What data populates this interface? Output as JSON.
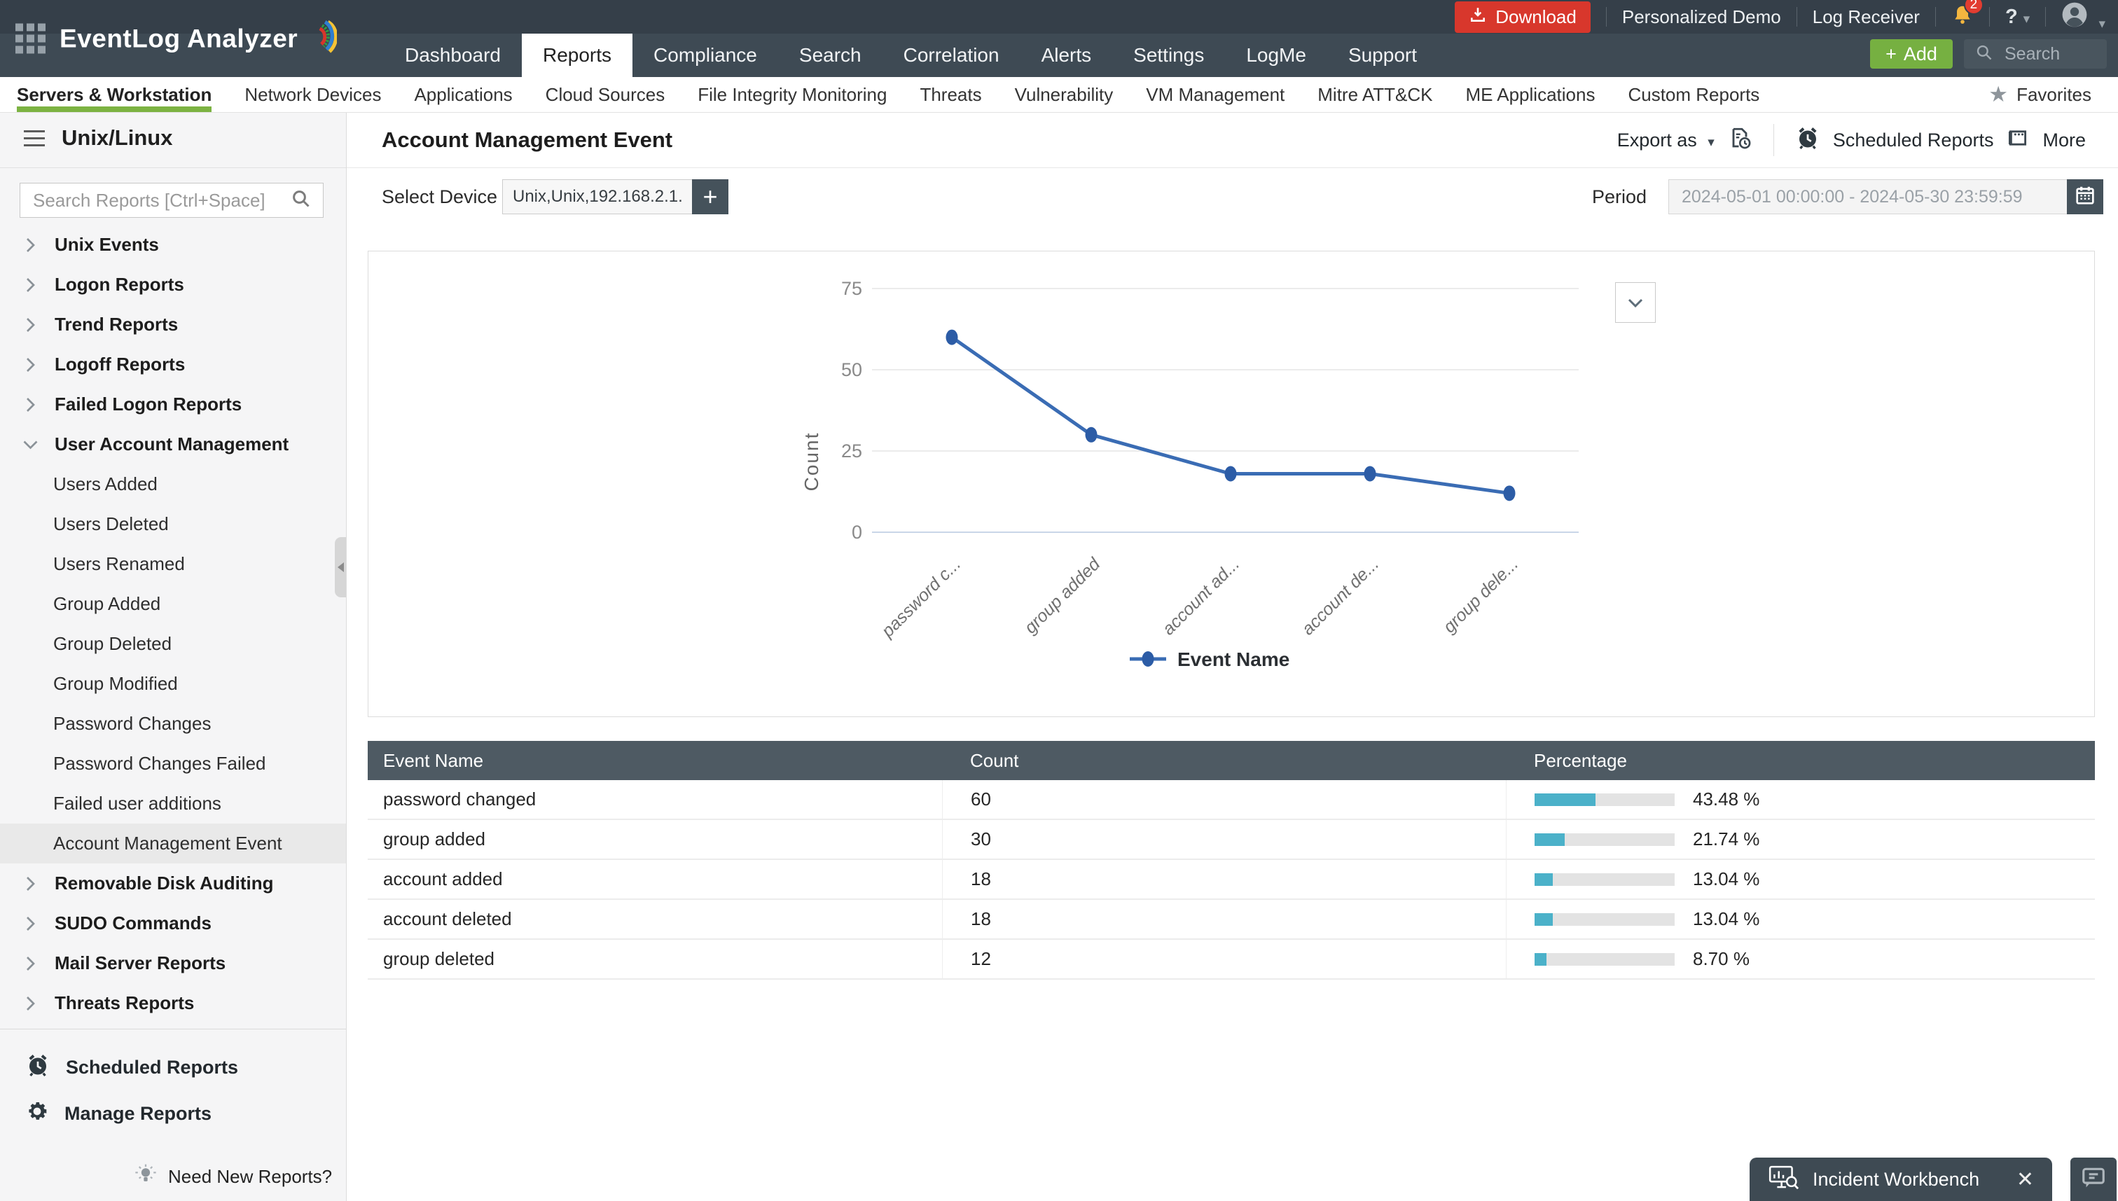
{
  "header": {
    "brand": "EventLog Analyzer",
    "tabs": [
      {
        "label": "Dashboard"
      },
      {
        "label": "Reports",
        "active": true
      },
      {
        "label": "Compliance"
      },
      {
        "label": "Search"
      },
      {
        "label": "Correlation"
      },
      {
        "label": "Alerts"
      },
      {
        "label": "Settings"
      },
      {
        "label": "LogMe"
      },
      {
        "label": "Support"
      }
    ],
    "utility": {
      "download": "Download",
      "personalized_demo": "Personalized Demo",
      "log_receiver": "Log Receiver",
      "notification_count": "2",
      "help": "?"
    },
    "add_label": "Add",
    "search_placeholder": "Search"
  },
  "subnav": {
    "items": [
      {
        "label": "Servers & Workstation",
        "active": true
      },
      {
        "label": "Network Devices"
      },
      {
        "label": "Applications"
      },
      {
        "label": "Cloud Sources"
      },
      {
        "label": "File Integrity Monitoring"
      },
      {
        "label": "Threats"
      },
      {
        "label": "Vulnerability"
      },
      {
        "label": "VM Management"
      },
      {
        "label": "Mitre ATT&CK"
      },
      {
        "label": "ME Applications"
      },
      {
        "label": "Custom Reports"
      }
    ],
    "favorites": "Favorites"
  },
  "sidebar": {
    "title": "Unix/Linux",
    "search_placeholder": "Search Reports [Ctrl+Space]",
    "items": [
      {
        "label": "Unix Events",
        "type": "group"
      },
      {
        "label": "Logon Reports",
        "type": "group"
      },
      {
        "label": "Trend Reports",
        "type": "group"
      },
      {
        "label": "Logoff Reports",
        "type": "group"
      },
      {
        "label": "Failed Logon Reports",
        "type": "group"
      },
      {
        "label": "User Account Management",
        "type": "group",
        "expanded": true
      },
      {
        "label": "Users Added",
        "type": "child"
      },
      {
        "label": "Users Deleted",
        "type": "child"
      },
      {
        "label": "Users Renamed",
        "type": "child"
      },
      {
        "label": "Group Added",
        "type": "child"
      },
      {
        "label": "Group Deleted",
        "type": "child"
      },
      {
        "label": "Group Modified",
        "type": "child"
      },
      {
        "label": "Password Changes",
        "type": "child"
      },
      {
        "label": "Password Changes Failed",
        "type": "child"
      },
      {
        "label": "Failed user additions",
        "type": "child"
      },
      {
        "label": "Account Management Event",
        "type": "child",
        "selected": true
      },
      {
        "label": "Removable Disk Auditing",
        "type": "group"
      },
      {
        "label": "SUDO Commands",
        "type": "group"
      },
      {
        "label": "Mail Server Reports",
        "type": "group"
      },
      {
        "label": "Threats Reports",
        "type": "group"
      }
    ],
    "footer": [
      {
        "label": "Scheduled Reports"
      },
      {
        "label": "Manage Reports"
      }
    ],
    "need_new_reports": "Need New Reports?"
  },
  "main": {
    "title": "Account Management Event",
    "toolbar": {
      "export_as": "Export as",
      "scheduled_reports": "Scheduled Reports",
      "more": "More"
    },
    "filters": {
      "device_label": "Select Device",
      "device_value": "Unix,Unix,192.168.2.1...",
      "period_label": "Period",
      "period_value": "2024-05-01 00:00:00 - 2024-05-30 23:59:59"
    }
  },
  "chart_data": {
    "type": "line",
    "categories": [
      "password changed",
      "group added",
      "account added",
      "account deleted",
      "group deleted"
    ],
    "x_tick_labels": [
      "password c...",
      "group added",
      "account ad...",
      "account de...",
      "group dele..."
    ],
    "values": [
      60,
      30,
      18,
      18,
      12
    ],
    "series": [
      {
        "name": "Event Name",
        "values": [
          60,
          30,
          18,
          18,
          12
        ]
      }
    ],
    "xlabel": "Event Name",
    "ylabel": "Count",
    "yticks": [
      0,
      25,
      50,
      75
    ],
    "ylim": [
      0,
      80
    ],
    "grid": true,
    "legend": {
      "label": "Event Name",
      "position": "bottom"
    },
    "line_color": "#3a6cb4",
    "point_color": "#2c5ca6"
  },
  "table": {
    "columns": [
      "Event Name",
      "Count",
      "Percentage"
    ],
    "rows": [
      {
        "event": "password changed",
        "count": "60",
        "pct": 43.48,
        "percentage": "43.48 %"
      },
      {
        "event": "group added",
        "count": "30",
        "pct": 21.74,
        "percentage": "21.74 %"
      },
      {
        "event": "account added",
        "count": "18",
        "pct": 13.04,
        "percentage": "13.04 %"
      },
      {
        "event": "account deleted",
        "count": "18",
        "pct": 13.04,
        "percentage": "13.04 %"
      },
      {
        "event": "group deleted",
        "count": "12",
        "pct": 8.7,
        "percentage": "8.70 %"
      }
    ],
    "bar_color": "#4bb1c9"
  },
  "incident": {
    "label": "Incident Workbench"
  },
  "colors": {
    "header_dark": "#3e4a54",
    "download_red": "#d8372c",
    "add_green": "#76b041",
    "accent_green": "#7cb342",
    "table_header": "#4e5a63",
    "bar_teal": "#4bb1c9",
    "line_blue": "#3a6cb4"
  }
}
